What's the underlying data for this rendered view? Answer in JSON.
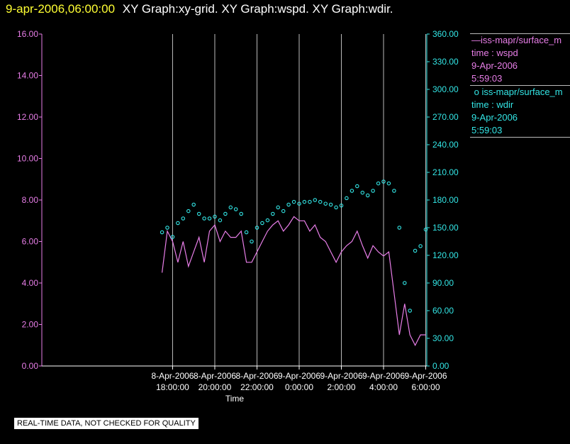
{
  "header": {
    "timestamp": "9-apr-2006,06:00:00",
    "title": "XY Graph:xy-grid.  XY Graph:wspd.  XY Graph:wdir."
  },
  "legend": {
    "wspd": {
      "name": "iss-mapr/surface_m",
      "line1": "time : wspd",
      "line2": "9-Apr-2006",
      "line3": "5:59:03"
    },
    "wdir": {
      "name": "iss-mapr/surface_m",
      "line1": "time : wdir",
      "line2": "9-Apr-2006",
      "line3": "5:59:03"
    }
  },
  "footer": {
    "quality_note": "REAL-TIME DATA, NOT CHECKED FOR QUALITY"
  },
  "colors": {
    "wspd": "#e87ee8",
    "wdir": "#33e6e6",
    "grid": "#bbbbbb",
    "axis": "#ffffff",
    "timestamp": "#ffff33"
  },
  "chart_data": {
    "type": "line",
    "xlabel": "Time",
    "x_range_hours": [
      -12.2,
      6.05
    ],
    "x_ticks": [
      {
        "hour": -6,
        "date": "8-Apr-2006",
        "time": "18:00:00"
      },
      {
        "hour": -4,
        "date": "8-Apr-2006",
        "time": "20:00:00"
      },
      {
        "hour": -2,
        "date": "8-Apr-2006",
        "time": "22:00:00"
      },
      {
        "hour": 0,
        "date": "9-Apr-2006",
        "time": "0:00:00"
      },
      {
        "hour": 2,
        "date": "9-Apr-2006",
        "time": "2:00:00"
      },
      {
        "hour": 4,
        "date": "9-Apr-2006",
        "time": "4:00:00"
      },
      {
        "hour": 6,
        "date": "9-Apr-2006",
        "time": "6:00:00"
      }
    ],
    "y_left": {
      "range": [
        0,
        16
      ],
      "ticks": [
        "0.00",
        "2.00",
        "4.00",
        "6.00",
        "8.00",
        "10.00",
        "12.00",
        "14.00",
        "16.00"
      ]
    },
    "y_right": {
      "range": [
        0,
        360
      ],
      "ticks": [
        "0.00",
        "30.00",
        "60.00",
        "90.00",
        "120.00",
        "150.00",
        "180.00",
        "210.00",
        "240.00",
        "270.00",
        "300.00",
        "330.00",
        "360.00"
      ]
    },
    "grid": "vertical",
    "series": [
      {
        "name": "iss-mapr/surface_m",
        "field": "wspd",
        "axis": "left",
        "style": "line",
        "x": [
          -6.5,
          -6.25,
          -6.0,
          -5.75,
          -5.5,
          -5.25,
          -5.0,
          -4.75,
          -4.5,
          -4.25,
          -4.0,
          -3.75,
          -3.5,
          -3.25,
          -3.0,
          -2.75,
          -2.5,
          -2.25,
          -2.0,
          -1.75,
          -1.5,
          -1.25,
          -1.0,
          -0.75,
          -0.5,
          -0.25,
          0.0,
          0.25,
          0.5,
          0.75,
          1.0,
          1.25,
          1.5,
          1.75,
          2.0,
          2.25,
          2.5,
          2.75,
          3.0,
          3.25,
          3.5,
          3.75,
          4.0,
          4.25,
          4.5,
          4.75,
          5.0,
          5.25,
          5.5,
          5.75,
          6.0
        ],
        "values": [
          4.5,
          6.5,
          6.0,
          5.0,
          6.0,
          4.8,
          5.5,
          6.2,
          5.0,
          6.5,
          6.8,
          6.0,
          6.5,
          6.2,
          6.2,
          6.5,
          5.0,
          5.0,
          5.5,
          6.0,
          6.5,
          6.8,
          7.0,
          6.5,
          6.8,
          7.2,
          7.0,
          7.0,
          6.5,
          6.8,
          6.2,
          6.0,
          5.5,
          5.0,
          5.5,
          5.8,
          6.0,
          6.5,
          5.8,
          5.2,
          5.8,
          5.5,
          5.3,
          5.5,
          3.5,
          1.5,
          3.0,
          1.5,
          1.0,
          1.5,
          1.5
        ]
      },
      {
        "name": "iss-mapr/surface_m",
        "field": "wdir",
        "axis": "right",
        "style": "scatter",
        "x": [
          -6.5,
          -6.25,
          -6.0,
          -5.75,
          -5.5,
          -5.25,
          -5.0,
          -4.75,
          -4.5,
          -4.25,
          -4.0,
          -3.75,
          -3.5,
          -3.25,
          -3.0,
          -2.75,
          -2.5,
          -2.25,
          -2.0,
          -1.75,
          -1.5,
          -1.25,
          -1.0,
          -0.75,
          -0.5,
          -0.25,
          0.0,
          0.25,
          0.5,
          0.75,
          1.0,
          1.25,
          1.5,
          1.75,
          2.0,
          2.25,
          2.5,
          2.75,
          3.0,
          3.25,
          3.5,
          3.75,
          4.0,
          4.25,
          4.5,
          4.75,
          5.0,
          5.25,
          5.5,
          5.75,
          6.0
        ],
        "values": [
          145,
          150,
          140,
          155,
          160,
          168,
          175,
          165,
          160,
          160,
          162,
          158,
          165,
          172,
          170,
          165,
          145,
          135,
          150,
          155,
          158,
          165,
          172,
          168,
          175,
          178,
          176,
          178,
          178,
          180,
          178,
          176,
          175,
          172,
          174,
          182,
          190,
          195,
          188,
          185,
          190,
          198,
          200,
          198,
          190,
          150,
          90,
          60,
          125,
          130,
          148
        ]
      }
    ]
  }
}
